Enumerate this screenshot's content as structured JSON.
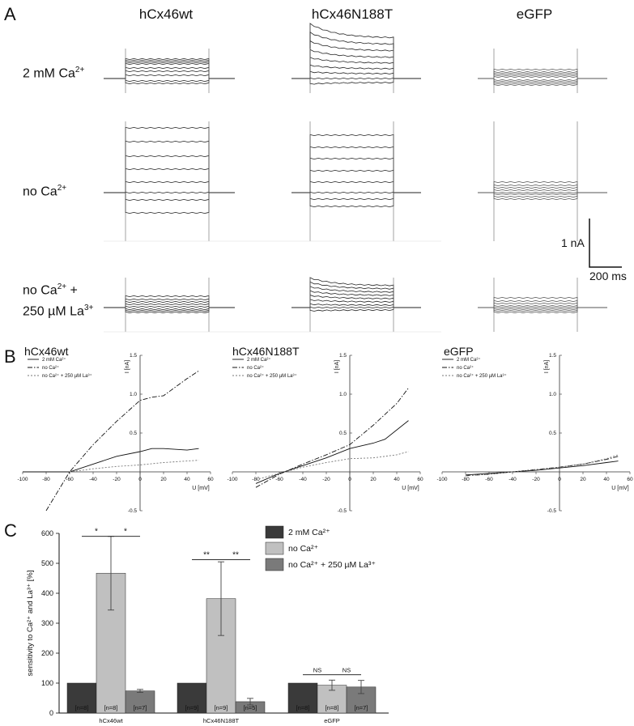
{
  "panel_a": {
    "letter": "A",
    "columns": [
      "hCx46wt",
      "hCx46N188T",
      "eGFP"
    ],
    "rows": [
      {
        "pre": "2 mM Ca",
        "sup": "2+",
        "post": "",
        "line2": ""
      },
      {
        "pre": "no Ca",
        "sup": "2+",
        "post": "",
        "line2": ""
      },
      {
        "pre": "no Ca",
        "sup": "2+",
        "post": " +",
        "line2": "250 µM La",
        "line2_sup": "3+"
      }
    ],
    "scale_current": "1 nA",
    "scale_time": "200 ms"
  },
  "panel_b": {
    "letter": "B",
    "plots": [
      {
        "title": "hCx46wt"
      },
      {
        "title": "hCx46N188T"
      },
      {
        "title": "eGFP"
      }
    ],
    "legend": [
      "2 mM Ca²⁺",
      "no Ca²⁺",
      "no Ca²⁺ + 250 µM La³⁺"
    ],
    "xlabel": "U [mV]",
    "ylabel": "I [nA]",
    "x_ticks": [
      "-100",
      "-80",
      "-60",
      "-40",
      "-20",
      "0",
      "20",
      "40",
      "60"
    ],
    "y_ticks": [
      "-0.5",
      "0.5",
      "1.0",
      "1.5"
    ]
  },
  "panel_c": {
    "letter": "C",
    "ylabel": "sensitivity to Ca²⁺ and La³⁺ [%]"
  },
  "chart_data": [
    {
      "type": "line",
      "panel": "B-hCx46wt",
      "title": "hCx46wt",
      "xlabel": "U [mV]",
      "ylabel": "I [nA]",
      "xlim": [
        -100,
        60
      ],
      "ylim": [
        -0.5,
        1.5
      ],
      "series": [
        {
          "name": "2 mM Ca²⁺",
          "x": [
            -100,
            -80,
            -60,
            -40,
            -20,
            0,
            10,
            20,
            40,
            50
          ],
          "y": [
            0.0,
            0.0,
            0.0,
            0.1,
            0.2,
            0.26,
            0.3,
            0.3,
            0.28,
            0.3
          ]
        },
        {
          "name": "no Ca²⁺",
          "x": [
            -80,
            -60,
            -40,
            -20,
            0,
            10,
            20,
            40,
            50
          ],
          "y": [
            -0.5,
            0.0,
            0.35,
            0.65,
            0.92,
            0.96,
            0.98,
            1.2,
            1.3
          ]
        },
        {
          "name": "no Ca²⁺ + 250 µM La³⁺",
          "x": [
            -60,
            -40,
            -20,
            0,
            20,
            40,
            50
          ],
          "y": [
            0.0,
            0.04,
            0.07,
            0.09,
            0.12,
            0.14,
            0.15
          ]
        }
      ]
    },
    {
      "type": "line",
      "panel": "B-hCx46N188T",
      "title": "hCx46N188T",
      "xlabel": "U [mV]",
      "ylabel": "I [nA]",
      "xlim": [
        -100,
        60
      ],
      "ylim": [
        -0.5,
        1.5
      ],
      "series": [
        {
          "name": "2 mM Ca²⁺",
          "x": [
            -80,
            -60,
            -40,
            -20,
            0,
            20,
            30,
            50
          ],
          "y": [
            -0.15,
            -0.02,
            0.08,
            0.18,
            0.3,
            0.37,
            0.42,
            0.66
          ]
        },
        {
          "name": "no Ca²⁺",
          "x": [
            -80,
            -60,
            -40,
            -20,
            0,
            20,
            40,
            50
          ],
          "y": [
            -0.2,
            -0.03,
            0.1,
            0.22,
            0.35,
            0.6,
            0.88,
            1.08
          ]
        },
        {
          "name": "no Ca²⁺ + 250 µM La³⁺",
          "x": [
            -80,
            -60,
            -40,
            -20,
            0,
            20,
            40,
            50
          ],
          "y": [
            -0.1,
            -0.02,
            0.06,
            0.12,
            0.17,
            0.18,
            0.22,
            0.26
          ]
        }
      ]
    },
    {
      "type": "line",
      "panel": "B-eGFP",
      "title": "eGFP",
      "xlabel": "U [mV]",
      "ylabel": "I [nA]",
      "xlim": [
        -100,
        60
      ],
      "ylim": [
        -0.5,
        1.5
      ],
      "series": [
        {
          "name": "2 mM Ca²⁺",
          "x": [
            -80,
            -60,
            -40,
            -20,
            0,
            20,
            40,
            50
          ],
          "y": [
            -0.04,
            -0.02,
            0.0,
            0.02,
            0.05,
            0.08,
            0.12,
            0.14
          ]
        },
        {
          "name": "no Ca²⁺",
          "x": [
            -80,
            -60,
            -40,
            -20,
            0,
            20,
            40,
            50
          ],
          "y": [
            -0.05,
            -0.03,
            0.0,
            0.03,
            0.06,
            0.1,
            0.16,
            0.2
          ]
        },
        {
          "name": "no Ca²⁺ + 250 µM La³⁺",
          "x": [
            -80,
            -60,
            -40,
            -20,
            0,
            20,
            40,
            50
          ],
          "y": [
            -0.05,
            -0.03,
            0.0,
            0.03,
            0.06,
            0.1,
            0.17,
            0.22
          ]
        }
      ]
    },
    {
      "type": "bar",
      "panel": "C",
      "ylabel": "sensitivity to Ca²⁺ and La³⁺ [%]",
      "ylim": [
        0,
        600
      ],
      "y_ticks": [
        0,
        100,
        200,
        300,
        400,
        500,
        600
      ],
      "categories": [
        "hCx46wt",
        "hCx46N188T",
        "eGFP"
      ],
      "series": [
        {
          "name": "2 mM Ca²⁺",
          "color": "#3a3a3a",
          "values": [
            100,
            100,
            100
          ],
          "errors": [
            0,
            0,
            0
          ],
          "n": [
            "[n=8]",
            "[n=9]",
            "[n=8]"
          ]
        },
        {
          "name": "no Ca²⁺",
          "color": "#c0c0c0",
          "values": [
            467,
            382,
            93
          ],
          "errors": [
            123,
            123,
            17
          ],
          "n": [
            "[n=8]",
            "[n=9]",
            "[n=8]"
          ]
        },
        {
          "name": "no Ca²⁺ + 250 µM La³⁺",
          "color": "#7a7a7a",
          "values": [
            74,
            38,
            87
          ],
          "errors": [
            5,
            11,
            22
          ],
          "n": [
            "[n=7]",
            "[n=5]",
            "[n=7]"
          ]
        }
      ],
      "significance": [
        {
          "category": "hCx46wt",
          "labels": [
            "*",
            "*"
          ]
        },
        {
          "category": "hCx46N188T",
          "labels": [
            "**",
            "**"
          ]
        },
        {
          "category": "eGFP",
          "labels": [
            "NS",
            "NS"
          ]
        }
      ]
    }
  ]
}
